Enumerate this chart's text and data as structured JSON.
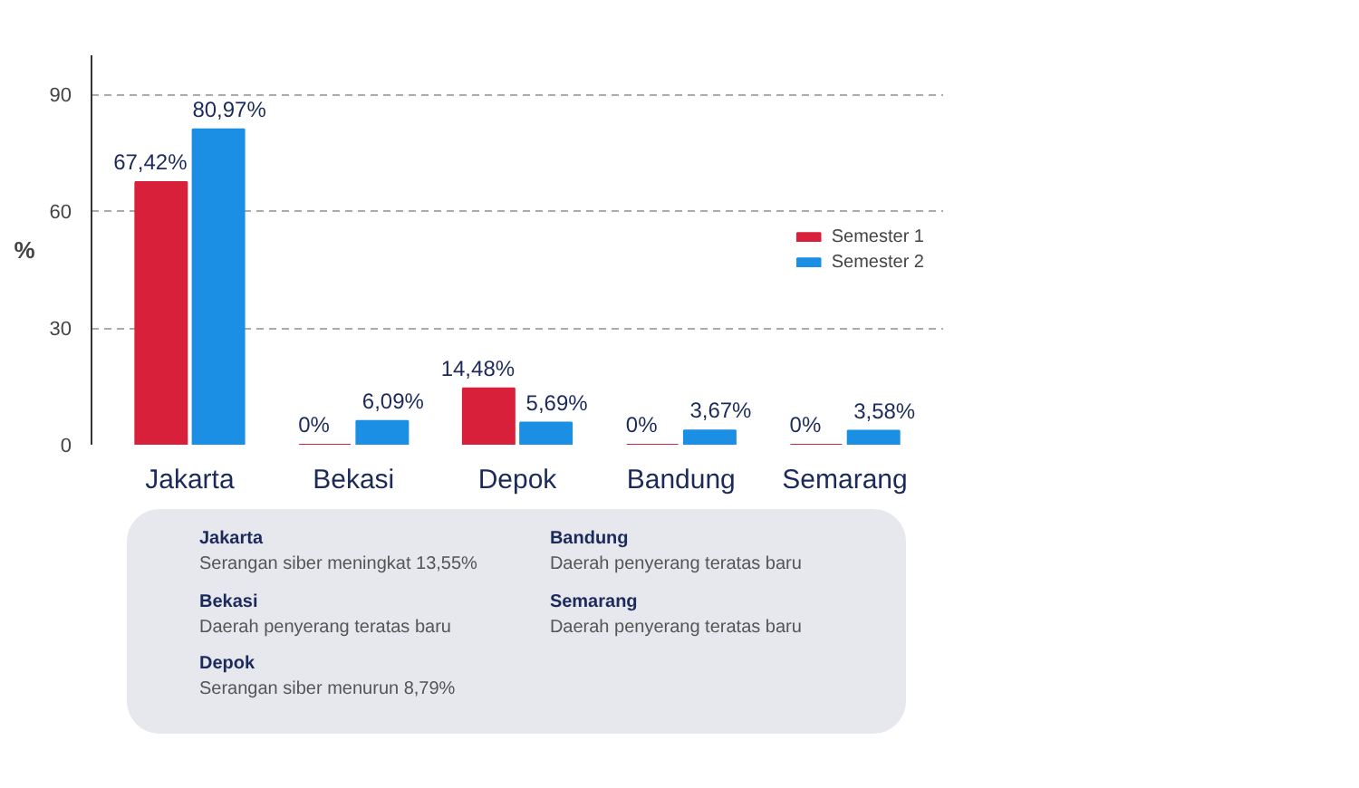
{
  "chart_data": {
    "type": "bar",
    "ylabel": "%",
    "categories": [
      "Jakarta",
      "Bekasi",
      "Depok",
      "Bandung",
      "Semarang"
    ],
    "series": [
      {
        "name": "Semester 1",
        "color": "#d9203a",
        "values": [
          67.42,
          0,
          14.48,
          0,
          0
        ],
        "value_labels": [
          "67,42%",
          "0%",
          "14,48%",
          "0%",
          "0%"
        ]
      },
      {
        "name": "Semester 2",
        "color": "#1a8fe3",
        "values": [
          80.97,
          6.09,
          5.69,
          3.67,
          3.58
        ],
        "value_labels": [
          "80,97%",
          "6,09%",
          "5,69%",
          "3,67%",
          "3,58%"
        ]
      }
    ],
    "ylim": [
      0,
      100
    ],
    "yticks": [
      0,
      30,
      60,
      90
    ],
    "grid": "y",
    "legend": "right",
    "annotations": [
      "Jakarta",
      "Serangan siber meningkat 13,55%",
      "Bekasi",
      "Daerah penyerang teratas baru",
      "Depok",
      "Serangan siber menurun 8,79%",
      "Bandung",
      "Daerah penyerang teratas baru",
      "Semarang",
      "Daerah penyerang teratas baru"
    ]
  }
}
